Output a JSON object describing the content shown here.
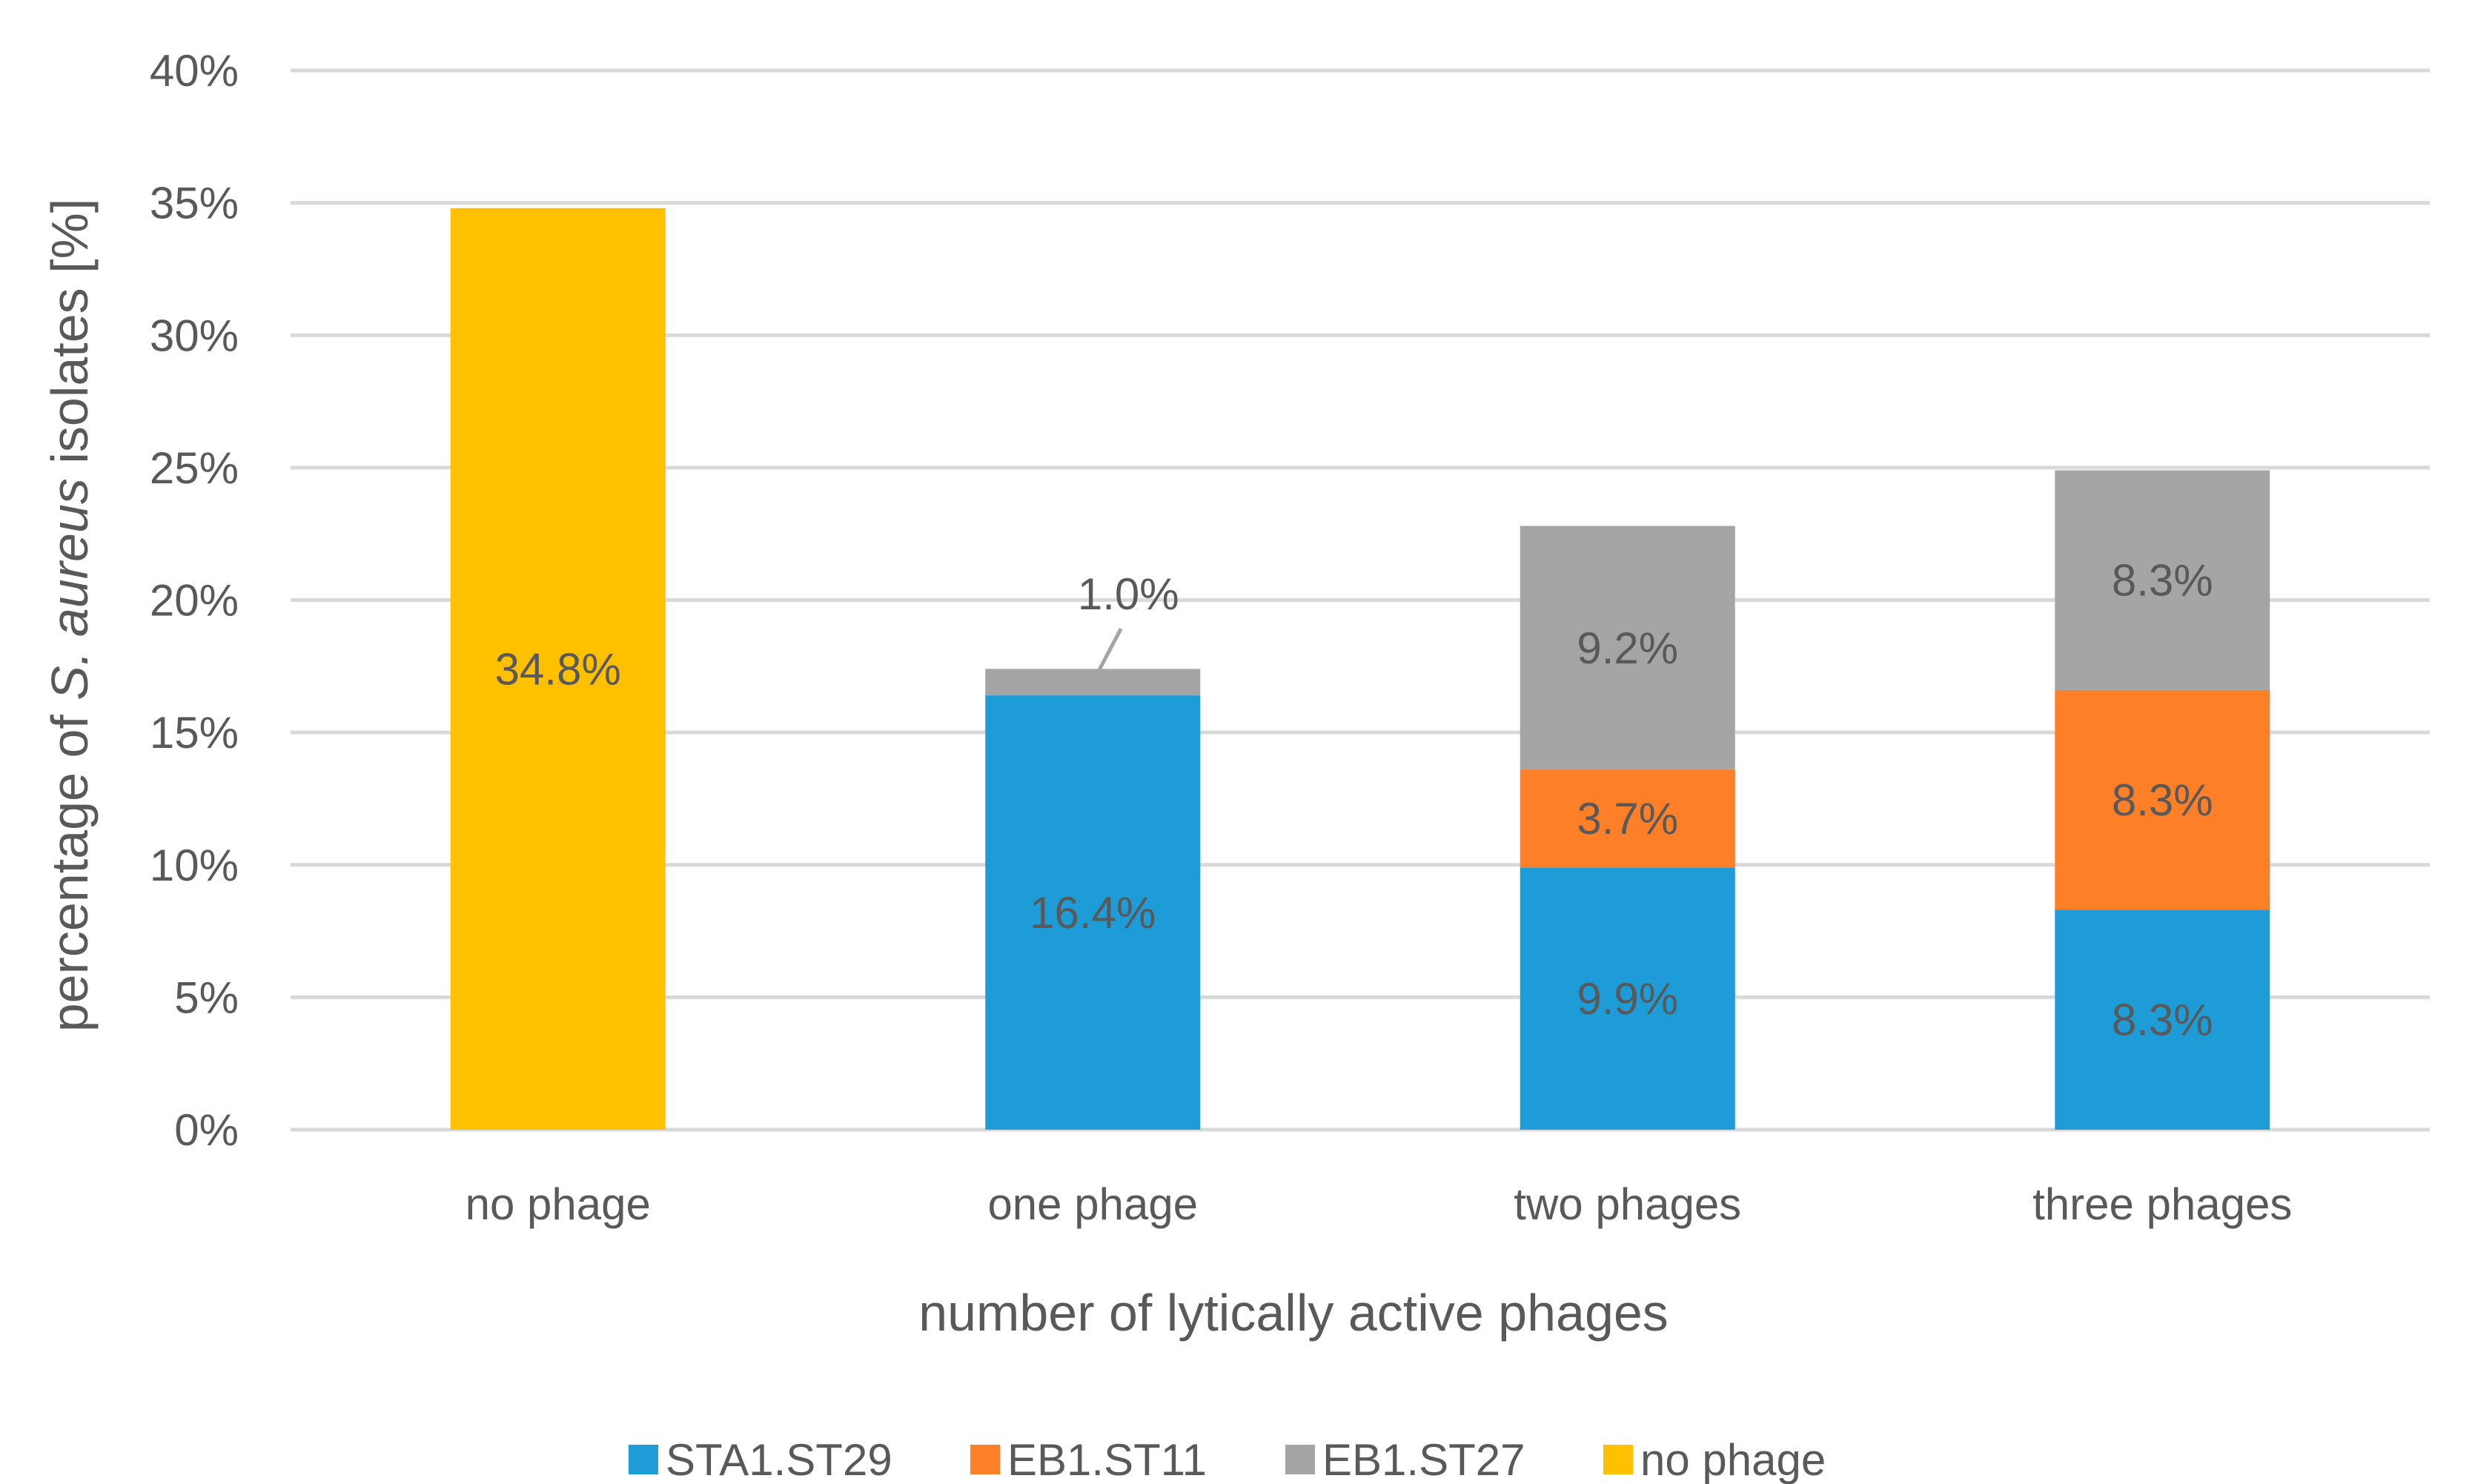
{
  "chart_data": {
    "type": "bar",
    "stacked": true,
    "categories": [
      "no phage",
      "one phage",
      "two phages",
      "three phages"
    ],
    "series": [
      {
        "name": "STA1.ST29",
        "color": "#1e9cd7",
        "values": [
          0,
          16.4,
          9.9,
          8.3
        ],
        "labels": [
          "",
          "16.4%",
          "9.9%",
          "8.3%"
        ]
      },
      {
        "name": "EB1.ST11",
        "color": "#fd7f28",
        "values": [
          0,
          0,
          3.7,
          8.3
        ],
        "labels": [
          "",
          "",
          "3.7%",
          "8.3%"
        ]
      },
      {
        "name": "EB1.ST27",
        "color": "#a5a5a5",
        "values": [
          0,
          1.0,
          9.2,
          8.3
        ],
        "labels": [
          "",
          "1.0%",
          "9.2%",
          "8.3%"
        ]
      },
      {
        "name": "no phage",
        "color": "#ffc000",
        "values": [
          34.8,
          0,
          0,
          0
        ],
        "labels": [
          "34.8%",
          "",
          "",
          ""
        ]
      }
    ],
    "xlabel": "number of lytically active phages",
    "ylabel_parts": [
      "percentage of ",
      "S. aureus",
      " isolates [%]"
    ],
    "ylim": [
      0,
      40
    ],
    "yticks": [
      0,
      5,
      10,
      15,
      20,
      25,
      30,
      35,
      40
    ],
    "ytick_labels": [
      "0%",
      "5%",
      "10%",
      "15%",
      "20%",
      "25%",
      "30%",
      "35%",
      "40%"
    ],
    "grid": true,
    "legend_position": "bottom"
  }
}
